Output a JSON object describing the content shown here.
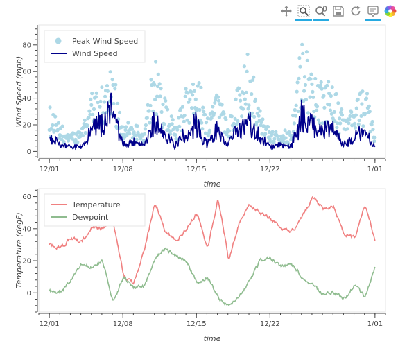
{
  "toolbar": {
    "tools": [
      {
        "name": "pan-tool",
        "icon": "move-arrows-icon",
        "active": false
      },
      {
        "name": "box-zoom-tool",
        "icon": "box-zoom-icon",
        "active": true
      },
      {
        "name": "wheel-zoom-tool",
        "icon": "wheel-zoom-icon",
        "active": true
      },
      {
        "name": "save-tool",
        "icon": "save-disk-icon",
        "active": false
      },
      {
        "name": "reset-tool",
        "icon": "reset-icon",
        "active": false
      },
      {
        "name": "hover-tool",
        "icon": "hover-tooltip-icon",
        "active": true
      },
      {
        "name": "bokeh-logo",
        "icon": "bokeh-logo-icon",
        "active": false
      }
    ],
    "accent": "#26aae1"
  },
  "chart_data": [
    {
      "type": "line",
      "xlabel": "time",
      "ylabel": "Wind Speed (mph)",
      "xlim": [
        "2011-11-30",
        "2012-01-02"
      ],
      "ylim": [
        -5,
        95
      ],
      "x_ticks": [
        "12/01",
        "12/08",
        "12/15",
        "12/22",
        "1/01"
      ],
      "y_ticks": [
        0,
        20,
        40,
        60,
        80
      ],
      "legend": "top-left",
      "series": [
        {
          "name": "Peak Wind Speed",
          "kind": "scatter",
          "color": "#add8e6",
          "x": [
            "2011-12-01",
            "2011-12-02",
            "2011-12-03",
            "2011-12-04",
            "2011-12-05",
            "2011-12-06",
            "2011-12-07",
            "2011-12-08",
            "2011-12-09",
            "2011-12-10",
            "2011-12-11",
            "2011-12-12",
            "2011-12-13",
            "2011-12-14",
            "2011-12-15",
            "2011-12-16",
            "2011-12-17",
            "2011-12-18",
            "2011-12-19",
            "2011-12-20",
            "2011-12-21",
            "2011-12-22",
            "2011-12-23",
            "2011-12-24",
            "2011-12-25",
            "2011-12-26",
            "2011-12-27",
            "2011-12-28",
            "2011-12-29",
            "2011-12-30",
            "2011-12-31",
            "2012-01-01"
          ],
          "values": [
            30,
            15,
            10,
            12,
            42,
            44,
            65,
            14,
            18,
            10,
            72,
            38,
            15,
            44,
            64,
            20,
            48,
            16,
            55,
            72,
            38,
            10,
            14,
            12,
            90,
            60,
            47,
            50,
            22,
            32,
            52,
            8
          ]
        },
        {
          "name": "Wind Speed",
          "kind": "line",
          "color": "#00008b",
          "x": [
            "2011-12-01",
            "2011-12-02",
            "2011-12-03",
            "2011-12-04",
            "2011-12-05",
            "2011-12-06",
            "2011-12-07",
            "2011-12-08",
            "2011-12-09",
            "2011-12-10",
            "2011-12-11",
            "2011-12-12",
            "2011-12-13",
            "2011-12-14",
            "2011-12-15",
            "2011-12-16",
            "2011-12-17",
            "2011-12-18",
            "2011-12-19",
            "2011-12-20",
            "2011-12-21",
            "2011-12-22",
            "2011-12-23",
            "2011-12-24",
            "2011-12-25",
            "2011-12-26",
            "2011-12-27",
            "2011-12-28",
            "2011-12-29",
            "2011-12-30",
            "2011-12-31",
            "2012-01-01"
          ],
          "values": [
            17,
            5,
            3,
            4,
            22,
            30,
            44,
            5,
            8,
            3,
            30,
            18,
            4,
            20,
            28,
            6,
            22,
            5,
            24,
            30,
            15,
            3,
            5,
            3,
            37,
            28,
            20,
            22,
            6,
            14,
            22,
            2
          ]
        }
      ]
    },
    {
      "type": "line",
      "xlabel": "time",
      "ylabel": "Temperature (degF)",
      "xlim": [
        "2011-11-30",
        "2012-01-02"
      ],
      "ylim": [
        -12,
        65
      ],
      "x_ticks": [
        "12/01",
        "12/08",
        "12/15",
        "12/22",
        "1/01"
      ],
      "y_ticks": [
        0,
        20,
        40,
        60
      ],
      "legend": "top-left",
      "series": [
        {
          "name": "Temperature",
          "kind": "line",
          "color": "#f08080",
          "x": [
            "2011-12-01",
            "2011-12-02",
            "2011-12-03",
            "2011-12-04",
            "2011-12-05",
            "2011-12-06",
            "2011-12-07",
            "2011-12-08",
            "2011-12-09",
            "2011-12-10",
            "2011-12-11",
            "2011-12-12",
            "2011-12-13",
            "2011-12-14",
            "2011-12-15",
            "2011-12-16",
            "2011-12-17",
            "2011-12-18",
            "2011-12-19",
            "2011-12-20",
            "2011-12-21",
            "2011-12-22",
            "2011-12-23",
            "2011-12-24",
            "2011-12-25",
            "2011-12-26",
            "2011-12-27",
            "2011-12-28",
            "2011-12-29",
            "2011-12-30",
            "2011-12-31",
            "2012-01-01"
          ],
          "values": [
            30,
            28,
            34,
            32,
            40,
            40,
            45,
            10,
            6,
            28,
            57,
            38,
            32,
            40,
            50,
            28,
            60,
            20,
            44,
            55,
            50,
            46,
            40,
            38,
            47,
            60,
            52,
            54,
            36,
            34,
            56,
            30
          ]
        },
        {
          "name": "Dewpoint",
          "kind": "line",
          "color": "#8fbc8f",
          "x": [
            "2011-12-01",
            "2011-12-02",
            "2011-12-03",
            "2011-12-04",
            "2011-12-05",
            "2011-12-06",
            "2011-12-07",
            "2011-12-08",
            "2011-12-09",
            "2011-12-10",
            "2011-12-11",
            "2011-12-12",
            "2011-12-13",
            "2011-12-14",
            "2011-12-15",
            "2011-12-16",
            "2011-12-17",
            "2011-12-18",
            "2011-12-19",
            "2011-12-20",
            "2011-12-21",
            "2011-12-22",
            "2011-12-23",
            "2011-12-24",
            "2011-12-25",
            "2011-12-26",
            "2011-12-27",
            "2011-12-28",
            "2011-12-29",
            "2011-12-30",
            "2011-12-31",
            "2012-01-01"
          ],
          "values": [
            1,
            0,
            8,
            18,
            16,
            20,
            -6,
            10,
            3,
            4,
            22,
            28,
            22,
            20,
            5,
            10,
            -3,
            -9,
            -2,
            8,
            20,
            22,
            16,
            18,
            10,
            5,
            -1,
            0,
            -4,
            5,
            -3,
            17
          ]
        }
      ]
    }
  ]
}
